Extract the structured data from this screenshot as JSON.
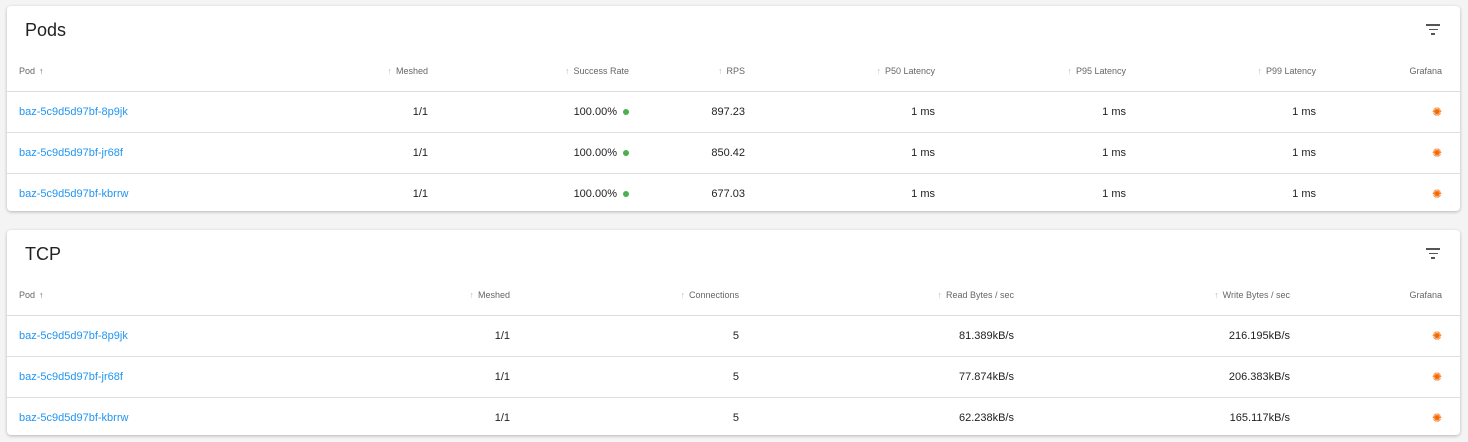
{
  "pods": {
    "title": "Pods",
    "columns": [
      "Pod",
      "Meshed",
      "Success Rate",
      "RPS",
      "P50 Latency",
      "P95 Latency",
      "P99 Latency",
      "Grafana"
    ],
    "rows": [
      {
        "pod": "baz-5c9d5d97bf-8p9jk",
        "meshed": "1/1",
        "success_rate": "100.00%",
        "rps": "897.23",
        "p50": "1 ms",
        "p95": "1 ms",
        "p99": "1 ms"
      },
      {
        "pod": "baz-5c9d5d97bf-jr68f",
        "meshed": "1/1",
        "success_rate": "100.00%",
        "rps": "850.42",
        "p50": "1 ms",
        "p95": "1 ms",
        "p99": "1 ms"
      },
      {
        "pod": "baz-5c9d5d97bf-kbrrw",
        "meshed": "1/1",
        "success_rate": "100.00%",
        "rps": "677.03",
        "p50": "1 ms",
        "p95": "1 ms",
        "p99": "1 ms"
      }
    ]
  },
  "tcp": {
    "title": "TCP",
    "columns": [
      "Pod",
      "Meshed",
      "Connections",
      "Read Bytes / sec",
      "Write Bytes / sec",
      "Grafana"
    ],
    "rows": [
      {
        "pod": "baz-5c9d5d97bf-8p9jk",
        "meshed": "1/1",
        "connections": "5",
        "read": "81.389kB/s",
        "write": "216.195kB/s"
      },
      {
        "pod": "baz-5c9d5d97bf-jr68f",
        "meshed": "1/1",
        "connections": "5",
        "read": "77.874kB/s",
        "write": "206.383kB/s"
      },
      {
        "pod": "baz-5c9d5d97bf-kbrrw",
        "meshed": "1/1",
        "connections": "5",
        "read": "62.238kB/s",
        "write": "165.117kB/s"
      }
    ]
  },
  "colors": {
    "link": "#2196f3",
    "success": "#4caf50",
    "grafana": "#f46800"
  },
  "icons": {
    "sort": "arrow-up-icon",
    "filter": "filter-list-icon",
    "grafana": "grafana-icon",
    "status": "status-dot-icon"
  }
}
